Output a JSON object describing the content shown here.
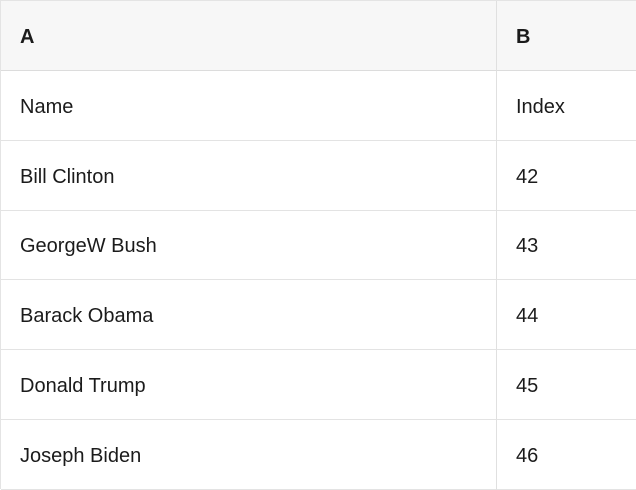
{
  "table": {
    "column_headers": [
      "A",
      "B"
    ],
    "rows": [
      [
        "Name",
        "Index"
      ],
      [
        "Bill Clinton",
        "42"
      ],
      [
        "GeorgeW Bush",
        "43"
      ],
      [
        "Barack Obama",
        "44"
      ],
      [
        "Donald Trump",
        "45"
      ],
      [
        "Joseph Biden",
        "46"
      ]
    ]
  },
  "colors": {
    "header_bg": "#f7f7f7",
    "row_bg": "#ffffff",
    "border": "#e3e3e3",
    "text": "#1b1b1b"
  }
}
